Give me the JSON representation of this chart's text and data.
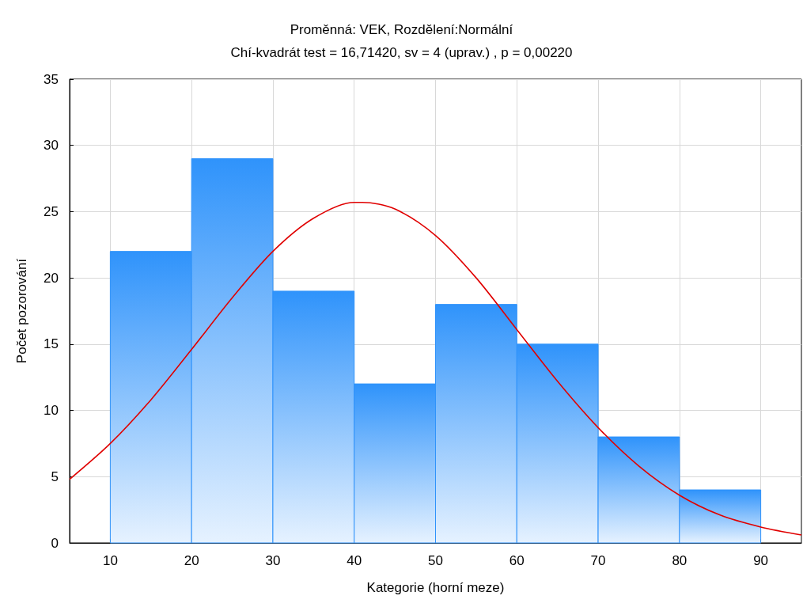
{
  "chart_data": {
    "type": "histogram",
    "title": "Proměnná: VEK, Rozdělení:Normální",
    "subtitle": "Chí-kvadrát test = 16,71420, sv = 4 (uprav.) , p = 0,00220",
    "xlabel": "Kategorie (horní meze)",
    "ylabel": "Počet pozorování",
    "bins": [
      10,
      20,
      30,
      40,
      50,
      60,
      70,
      80,
      90
    ],
    "values": [
      22,
      29,
      19,
      12,
      18,
      15,
      8,
      4
    ],
    "color": "#2f93fb",
    "series": [
      {
        "type": "line",
        "color": "#e00000",
        "x": [
          5,
          10,
          15,
          20,
          25,
          30,
          35,
          40,
          41,
          45,
          50,
          55,
          60,
          65,
          70,
          75,
          80,
          85,
          90,
          95
        ],
        "values": [
          4.8,
          7.5,
          10.8,
          14.6,
          18.5,
          22.0,
          24.5,
          25.7,
          25.7,
          25.2,
          23.2,
          20.0,
          16.1,
          12.2,
          8.7,
          5.8,
          3.6,
          2.1,
          1.2,
          0.6
        ]
      }
    ],
    "xlim": [
      5,
      95
    ],
    "xticks": [
      10,
      20,
      30,
      40,
      50,
      60,
      70,
      80,
      90
    ],
    "ylim": [
      0,
      35
    ],
    "yticks": [
      0,
      5,
      10,
      15,
      20,
      25,
      30,
      35
    ],
    "grid": true,
    "line_style": "solid",
    "marker": "none"
  }
}
